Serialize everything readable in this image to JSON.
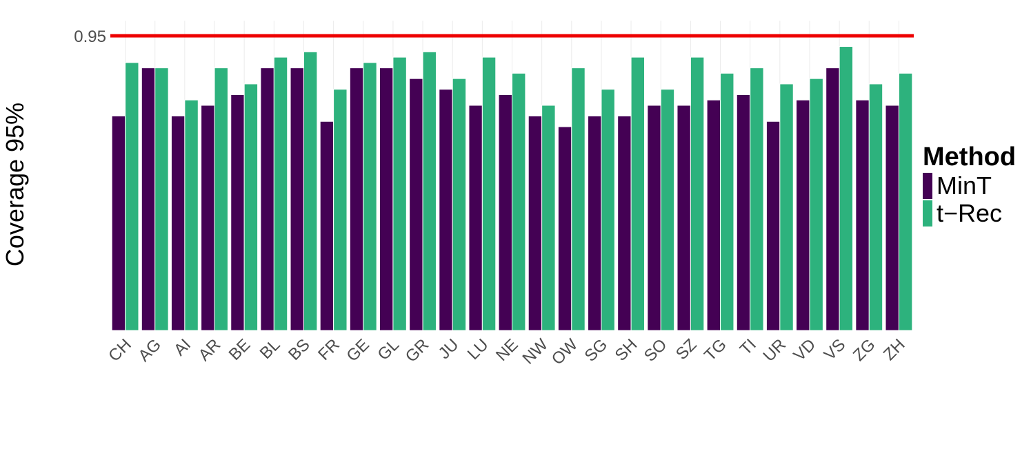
{
  "chart_data": {
    "type": "bar",
    "ylabel": "Coverage 95%",
    "xlabel": "",
    "y_ticks": [
      0.95
    ],
    "y_tick_labels": [
      "0.95"
    ],
    "reference_line": {
      "value": 0.95,
      "color": "#ee0000"
    },
    "ylim": [
      0.0,
      0.95
    ],
    "grid": true,
    "legend_position": "right",
    "legend_title": "Method",
    "categories": [
      "CH",
      "AG",
      "AI",
      "AR",
      "BE",
      "BL",
      "BS",
      "FR",
      "GE",
      "GL",
      "GR",
      "JU",
      "LU",
      "NE",
      "NW",
      "OW",
      "SG",
      "SH",
      "SO",
      "SZ",
      "TG",
      "TI",
      "UR",
      "VD",
      "VS",
      "ZG",
      "ZH"
    ],
    "series": [
      {
        "name": "MinT",
        "color": "#440154",
        "values": [
          0.8,
          0.89,
          0.8,
          0.82,
          0.84,
          0.89,
          0.89,
          0.79,
          0.89,
          0.89,
          0.87,
          0.85,
          0.82,
          0.84,
          0.8,
          0.78,
          0.8,
          0.8,
          0.82,
          0.82,
          0.83,
          0.84,
          0.79,
          0.83,
          0.89,
          0.83,
          0.82
        ]
      },
      {
        "name": "t−Rec",
        "color": "#2db27d",
        "values": [
          0.9,
          0.89,
          0.83,
          0.89,
          0.86,
          0.91,
          0.92,
          0.85,
          0.9,
          0.91,
          0.92,
          0.87,
          0.91,
          0.88,
          0.82,
          0.89,
          0.85,
          0.91,
          0.85,
          0.91,
          0.88,
          0.89,
          0.86,
          0.87,
          0.93,
          0.86,
          0.88
        ]
      }
    ]
  }
}
